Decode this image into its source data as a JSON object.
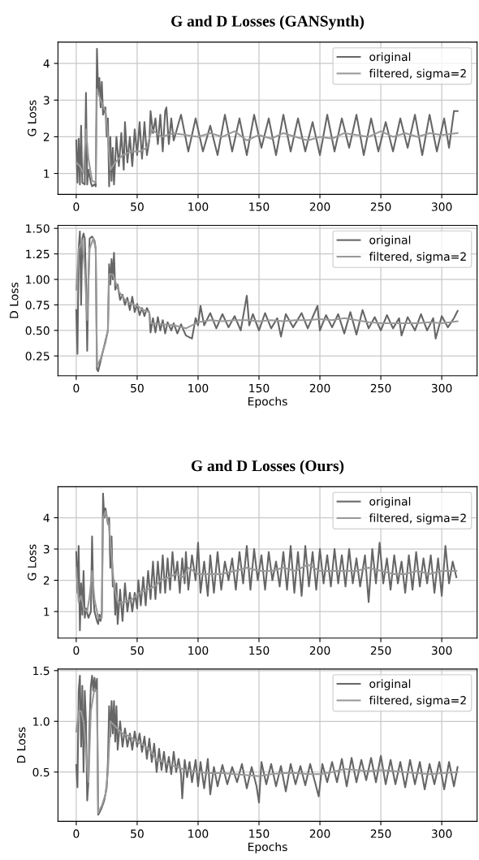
{
  "chart_data": [
    {
      "type": "line",
      "title": "G and D Losses (GANSynth)",
      "ylabel": "G Loss",
      "xlim": [
        -15,
        329
      ],
      "xticks": [
        0,
        50,
        100,
        150,
        200,
        250,
        300
      ],
      "ylim": [
        0.43,
        4.58
      ],
      "yticks": [
        1,
        2,
        3,
        4
      ],
      "grid": true,
      "legend": "top right",
      "series": [
        {
          "name": "original",
          "color": "#666666",
          "x": [
            0,
            1,
            2,
            3,
            4,
            5,
            7,
            8,
            9,
            10,
            12,
            13,
            15,
            16,
            17,
            18,
            19,
            20,
            21,
            22,
            24,
            25,
            26,
            27,
            28,
            29,
            30,
            31,
            33,
            35,
            37,
            39,
            40,
            42,
            44,
            46,
            48,
            50,
            52,
            54,
            56,
            58,
            60,
            61,
            63,
            65,
            67,
            69,
            71,
            73,
            74,
            76,
            78,
            80,
            86,
            92,
            98,
            104,
            110,
            116,
            122,
            128,
            134,
            140,
            146,
            152,
            158,
            164,
            170,
            176,
            182,
            188,
            194,
            200,
            206,
            212,
            218,
            224,
            230,
            236,
            242,
            248,
            254,
            260,
            266,
            272,
            278,
            284,
            290,
            296,
            302,
            306,
            310,
            313
          ],
          "values": [
            1.9,
            0.75,
            1.95,
            0.7,
            2.3,
            0.75,
            0.7,
            3.2,
            0.7,
            1.1,
            0.75,
            0.65,
            0.7,
            0.65,
            4.4,
            3.2,
            3.6,
            2.8,
            3.5,
            2.6,
            2.8,
            2.0,
            2.5,
            0.65,
            2.0,
            0.8,
            1.7,
            0.7,
            2.0,
            1.2,
            2.1,
            1.1,
            2.4,
            1.3,
            2.0,
            1.2,
            2.2,
            1.5,
            2.4,
            1.4,
            2.4,
            1.5,
            1.9,
            2.7,
            2.1,
            2.5,
            1.8,
            2.6,
            1.6,
            2.7,
            2.8,
            1.8,
            2.5,
            1.9,
            2.6,
            1.6,
            2.5,
            1.6,
            2.3,
            1.5,
            2.6,
            1.6,
            2.5,
            1.5,
            2.6,
            1.7,
            2.5,
            1.5,
            2.6,
            1.6,
            2.5,
            1.6,
            2.4,
            1.5,
            2.6,
            1.6,
            2.5,
            1.7,
            2.6,
            1.5,
            2.5,
            1.6,
            2.4,
            1.6,
            2.5,
            1.7,
            2.6,
            1.5,
            2.6,
            1.6,
            2.5,
            1.7,
            2.7,
            2.7
          ]
        },
        {
          "name": "filtered, sigma=2",
          "color": "#999999",
          "x": [
            0,
            3,
            6,
            8,
            10,
            13,
            16,
            17,
            20,
            24,
            26,
            28,
            32,
            38,
            45,
            52,
            58,
            62,
            70,
            80,
            90,
            100,
            110,
            120,
            130,
            140,
            150,
            160,
            170,
            180,
            190,
            200,
            210,
            220,
            230,
            240,
            250,
            260,
            270,
            280,
            290,
            300,
            313
          ],
          "values": [
            1.3,
            1.2,
            1.0,
            2.2,
            1.4,
            0.8,
            0.75,
            3.3,
            3.0,
            2.7,
            2.0,
            1.1,
            1.3,
            1.5,
            1.6,
            1.6,
            1.7,
            2.2,
            2.0,
            2.1,
            2.05,
            2.0,
            2.1,
            2.0,
            2.15,
            1.9,
            2.05,
            1.95,
            2.1,
            2.0,
            1.9,
            2.0,
            1.95,
            2.1,
            2.05,
            2.0,
            2.15,
            2.0,
            2.1,
            2.0,
            2.1,
            2.05,
            2.1
          ]
        }
      ]
    },
    {
      "type": "line",
      "xlabel": "Epochs",
      "ylabel": "D Loss",
      "xlim": [
        -15,
        329
      ],
      "xticks": [
        0,
        50,
        100,
        150,
        200,
        250,
        300
      ],
      "ylim": [
        0.055,
        1.53
      ],
      "yticks": [
        {
          "value": 0.25,
          "label": "0.25"
        },
        {
          "value": 0.5,
          "label": "0.50"
        },
        {
          "value": 0.75,
          "label": "0.75"
        },
        {
          "value": 1.0,
          "label": "1.00"
        },
        {
          "value": 1.25,
          "label": "1.25"
        },
        {
          "value": 1.5,
          "label": "1.50"
        }
      ],
      "grid": true,
      "legend": "top right",
      "series": [
        {
          "name": "original",
          "color": "#666666",
          "x": [
            0,
            1,
            2,
            3,
            4,
            5,
            6,
            7,
            8,
            9,
            10,
            11,
            13,
            15,
            16,
            17,
            18,
            20,
            23,
            25,
            26,
            27,
            28,
            29,
            30,
            31,
            32,
            34,
            36,
            38,
            40,
            42,
            44,
            46,
            48,
            50,
            52,
            54,
            56,
            58,
            60,
            61,
            63,
            65,
            67,
            69,
            71,
            73,
            75,
            78,
            80,
            83,
            86,
            90,
            95,
            98,
            100,
            102,
            105,
            110,
            115,
            120,
            125,
            130,
            135,
            140,
            142,
            145,
            150,
            155,
            160,
            165,
            168,
            172,
            178,
            185,
            190,
            198,
            200,
            205,
            210,
            215,
            220,
            225,
            230,
            235,
            240,
            245,
            250,
            255,
            260,
            265,
            267,
            272,
            278,
            283,
            288,
            293,
            295,
            300,
            305,
            310,
            313
          ],
          "values": [
            0.7,
            0.27,
            1.3,
            1.47,
            0.75,
            1.4,
            1.45,
            1.4,
            1.0,
            0.3,
            1.0,
            1.4,
            1.42,
            1.38,
            1.3,
            0.12,
            0.1,
            0.2,
            0.35,
            0.45,
            0.5,
            1.15,
            0.95,
            1.2,
            1.0,
            1.26,
            0.9,
            0.95,
            0.8,
            0.85,
            0.75,
            0.82,
            0.7,
            0.83,
            0.68,
            0.76,
            0.65,
            0.72,
            0.64,
            0.72,
            0.67,
            0.48,
            0.62,
            0.48,
            0.63,
            0.5,
            0.6,
            0.47,
            0.58,
            0.5,
            0.57,
            0.47,
            0.56,
            0.45,
            0.42,
            0.62,
            0.55,
            0.74,
            0.55,
            0.67,
            0.52,
            0.66,
            0.53,
            0.64,
            0.5,
            0.84,
            0.55,
            0.66,
            0.5,
            0.67,
            0.52,
            0.62,
            0.44,
            0.66,
            0.53,
            0.67,
            0.52,
            0.74,
            0.5,
            0.65,
            0.53,
            0.66,
            0.47,
            0.68,
            0.46,
            0.7,
            0.52,
            0.63,
            0.5,
            0.65,
            0.52,
            0.62,
            0.45,
            0.63,
            0.5,
            0.66,
            0.5,
            0.62,
            0.42,
            0.64,
            0.53,
            0.62,
            0.69
          ]
        },
        {
          "name": "filtered, sigma=2",
          "color": "#999999",
          "x": [
            0,
            2,
            5,
            7,
            9,
            11,
            14,
            16,
            17,
            20,
            24,
            26,
            27,
            30,
            35,
            40,
            45,
            50,
            55,
            60,
            61,
            70,
            80,
            90,
            100,
            110,
            120,
            130,
            140,
            150,
            160,
            170,
            180,
            190,
            200,
            210,
            220,
            230,
            240,
            250,
            260,
            270,
            280,
            290,
            300,
            313
          ],
          "values": [
            0.9,
            1.3,
            1.38,
            1.1,
            0.6,
            1.3,
            1.4,
            1.3,
            0.15,
            0.22,
            0.38,
            0.5,
            1.05,
            1.05,
            0.88,
            0.8,
            0.76,
            0.74,
            0.7,
            0.68,
            0.57,
            0.56,
            0.55,
            0.52,
            0.58,
            0.6,
            0.59,
            0.6,
            0.6,
            0.59,
            0.6,
            0.59,
            0.6,
            0.6,
            0.61,
            0.6,
            0.62,
            0.6,
            0.58,
            0.57,
            0.57,
            0.57,
            0.57,
            0.58,
            0.57,
            0.59
          ]
        }
      ]
    },
    {
      "type": "line",
      "title": "G and D Losses (Ours)",
      "ylabel": "G Loss",
      "xlim": [
        -15,
        329
      ],
      "xticks": [
        0,
        50,
        100,
        150,
        200,
        250,
        300
      ],
      "ylim": [
        0.15,
        4.99
      ],
      "yticks": [
        1,
        2,
        3,
        4
      ],
      "grid": true,
      "legend": "top right",
      "series": [
        {
          "name": "original",
          "color": "#666666",
          "x": [
            0,
            1,
            2,
            3,
            4,
            5,
            6,
            7,
            8,
            10,
            12,
            13,
            14,
            15,
            17,
            18,
            19,
            20,
            21,
            22,
            23,
            24,
            26,
            27,
            28,
            29,
            30,
            31,
            32,
            33,
            34,
            36,
            38,
            40,
            42,
            44,
            46,
            48,
            50,
            51,
            53,
            55,
            57,
            59,
            61,
            63,
            65,
            67,
            69,
            71,
            73,
            75,
            77,
            79,
            81,
            83,
            85,
            87,
            89,
            90,
            92,
            95,
            98,
            100,
            102,
            105,
            108,
            110,
            113,
            116,
            119,
            122,
            125,
            128,
            131,
            134,
            137,
            140,
            143,
            146,
            149,
            152,
            155,
            158,
            161,
            164,
            167,
            170,
            173,
            176,
            179,
            182,
            185,
            188,
            191,
            194,
            197,
            200,
            203,
            206,
            209,
            212,
            215,
            218,
            221,
            224,
            227,
            230,
            233,
            237,
            240,
            243,
            246,
            249,
            252,
            255,
            258,
            261,
            264,
            267,
            270,
            273,
            276,
            279,
            282,
            285,
            288,
            291,
            294,
            297,
            300,
            303,
            306,
            309,
            312
          ],
          "values": [
            2.9,
            1.6,
            3.1,
            0.4,
            1.9,
            0.9,
            2.3,
            0.8,
            1.1,
            0.8,
            1.0,
            3.4,
            1.5,
            1.0,
            0.7,
            0.6,
            0.9,
            0.7,
            1.0,
            4.77,
            4.0,
            4.3,
            3.8,
            4.0,
            2.4,
            3.4,
            1.8,
            2.0,
            0.9,
            1.9,
            0.6,
            1.7,
            0.7,
            1.9,
            1.0,
            1.6,
            1.0,
            1.6,
            1.1,
            2.0,
            1.2,
            2.1,
            1.2,
            2.3,
            1.4,
            2.6,
            1.4,
            2.6,
            1.6,
            2.8,
            1.6,
            2.7,
            1.7,
            2.9,
            2.0,
            2.6,
            1.6,
            2.7,
            1.9,
            2.9,
            1.7,
            2.8,
            2.0,
            3.2,
            1.6,
            2.6,
            1.5,
            2.8,
            1.6,
            2.9,
            1.7,
            2.6,
            2.0,
            2.7,
            1.7,
            2.9,
            1.9,
            3.1,
            1.7,
            3.0,
            2.0,
            2.8,
            1.7,
            2.9,
            2.0,
            2.6,
            1.8,
            2.9,
            1.7,
            3.1,
            1.6,
            2.9,
            1.5,
            3.1,
            1.8,
            2.9,
            1.7,
            3.0,
            1.9,
            2.8,
            1.8,
            3.0,
            1.9,
            2.8,
            1.8,
            3.0,
            1.9,
            2.7,
            1.8,
            2.8,
            1.3,
            3.0,
            1.9,
            3.2,
            1.9,
            2.7,
            1.7,
            2.8,
            1.9,
            2.6,
            1.6,
            2.8,
            1.7,
            2.9,
            1.8,
            2.7,
            1.9,
            2.8,
            1.6,
            2.7,
            1.5,
            3.1,
            1.9,
            2.6,
            2.1
          ]
        },
        {
          "name": "filtered, sigma=2",
          "color": "#999999",
          "x": [
            0,
            2,
            4,
            6,
            9,
            11,
            13,
            15,
            18,
            21,
            22,
            24,
            27,
            29,
            31,
            34,
            40,
            46,
            52,
            58,
            64,
            70,
            76,
            82,
            88,
            92,
            96,
            100,
            110,
            120,
            130,
            140,
            150,
            160,
            170,
            180,
            190,
            200,
            210,
            220,
            230,
            240,
            250,
            260,
            270,
            280,
            290,
            300,
            312
          ],
          "values": [
            2.4,
            1.3,
            1.5,
            1.1,
            1.0,
            1.5,
            2.3,
            1.4,
            0.8,
            0.8,
            4.0,
            4.2,
            3.7,
            2.8,
            1.8,
            1.3,
            1.3,
            1.4,
            1.6,
            1.7,
            1.8,
            2.0,
            2.1,
            2.2,
            2.1,
            2.4,
            2.3,
            2.2,
            2.2,
            2.2,
            2.3,
            2.4,
            2.3,
            2.3,
            2.4,
            2.3,
            2.5,
            2.3,
            2.3,
            2.3,
            2.3,
            2.4,
            2.3,
            2.2,
            2.2,
            2.3,
            2.2,
            2.3,
            2.3
          ]
        }
      ]
    },
    {
      "type": "line",
      "xlabel": "Epochs",
      "ylabel": "D Loss",
      "xlim": [
        -15,
        329
      ],
      "xticks": [
        0,
        50,
        100,
        150,
        200,
        250,
        300
      ],
      "ylim": [
        0.015,
        1.515
      ],
      "yticks": [
        0.5,
        {
          "value": 1.0,
          "label": "1.0"
        },
        1.5
      ],
      "grid": true,
      "legend": "top right",
      "series": [
        {
          "name": "original",
          "color": "#666666",
          "x": [
            0,
            1,
            2,
            3,
            4,
            5,
            6,
            7,
            8,
            9,
            10,
            11,
            12,
            13,
            14,
            15,
            16,
            17,
            18,
            19,
            21,
            23,
            25,
            26,
            27,
            28,
            29,
            30,
            31,
            32,
            33,
            34,
            36,
            38,
            40,
            42,
            44,
            46,
            48,
            50,
            52,
            54,
            56,
            58,
            60,
            62,
            64,
            66,
            68,
            70,
            72,
            74,
            76,
            78,
            80,
            82,
            84,
            86,
            87,
            89,
            91,
            93,
            95,
            98,
            100,
            102,
            105,
            108,
            110,
            113,
            116,
            120,
            124,
            128,
            132,
            136,
            140,
            144,
            148,
            150,
            152,
            156,
            160,
            164,
            168,
            172,
            176,
            180,
            184,
            188,
            192,
            196,
            199,
            202,
            206,
            210,
            214,
            218,
            222,
            226,
            230,
            234,
            238,
            242,
            246,
            250,
            254,
            258,
            262,
            266,
            270,
            274,
            278,
            282,
            286,
            290,
            294,
            298,
            302,
            306,
            310,
            313
          ],
          "values": [
            0.57,
            0.35,
            1.3,
            1.45,
            0.75,
            1.35,
            0.5,
            1.3,
            1.0,
            0.22,
            0.4,
            1.0,
            1.35,
            1.45,
            1.3,
            1.43,
            1.3,
            1.42,
            0.08,
            0.1,
            0.15,
            0.22,
            0.35,
            0.6,
            1.15,
            0.85,
            1.2,
            0.88,
            1.2,
            0.8,
            1.15,
            0.72,
            1.0,
            0.75,
            0.93,
            0.75,
            0.88,
            0.72,
            0.9,
            0.75,
            0.88,
            0.7,
            0.85,
            0.63,
            0.83,
            0.6,
            0.78,
            0.5,
            0.73,
            0.52,
            0.7,
            0.5,
            0.65,
            0.48,
            0.7,
            0.5,
            0.63,
            0.48,
            0.24,
            0.62,
            0.45,
            0.6,
            0.4,
            0.62,
            0.36,
            0.6,
            0.34,
            0.63,
            0.28,
            0.55,
            0.36,
            0.57,
            0.38,
            0.55,
            0.4,
            0.58,
            0.34,
            0.55,
            0.36,
            0.2,
            0.6,
            0.38,
            0.58,
            0.36,
            0.56,
            0.31,
            0.58,
            0.38,
            0.56,
            0.37,
            0.58,
            0.4,
            0.26,
            0.58,
            0.4,
            0.6,
            0.4,
            0.63,
            0.36,
            0.64,
            0.4,
            0.62,
            0.42,
            0.64,
            0.4,
            0.66,
            0.38,
            0.62,
            0.38,
            0.6,
            0.35,
            0.62,
            0.38,
            0.6,
            0.33,
            0.58,
            0.38,
            0.6,
            0.33,
            0.6,
            0.36,
            0.55
          ]
        },
        {
          "name": "filtered, sigma=2",
          "color": "#999999",
          "x": [
            0,
            2,
            4,
            6,
            8,
            10,
            12,
            15,
            17,
            18,
            21,
            24,
            26,
            28,
            32,
            38,
            44,
            50,
            56,
            60,
            66,
            72,
            80,
            90,
            100,
            110,
            120,
            130,
            140,
            150,
            160,
            170,
            180,
            190,
            200,
            210,
            220,
            230,
            240,
            250,
            260,
            270,
            280,
            290,
            300,
            313
          ],
          "values": [
            0.9,
            1.1,
            1.1,
            1.0,
            0.7,
            0.4,
            1.1,
            1.32,
            1.3,
            0.1,
            0.17,
            0.28,
            0.5,
            1.0,
            0.95,
            0.88,
            0.85,
            0.8,
            0.76,
            0.72,
            0.62,
            0.6,
            0.56,
            0.52,
            0.5,
            0.49,
            0.49,
            0.48,
            0.47,
            0.46,
            0.48,
            0.49,
            0.49,
            0.48,
            0.48,
            0.5,
            0.53,
            0.52,
            0.51,
            0.52,
            0.51,
            0.5,
            0.49,
            0.48,
            0.49,
            0.5
          ]
        }
      ]
    }
  ]
}
